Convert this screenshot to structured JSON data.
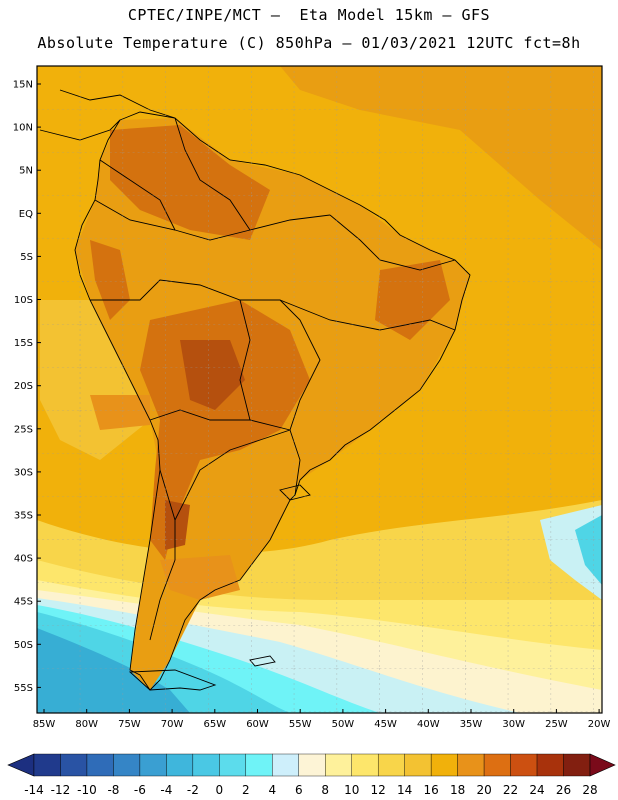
{
  "header": {
    "title_line1": "CPTEC/INPE/MCT –  Eta Model 15km – GFS",
    "title_line2": "Absolute Temperature (C) 850hPa – 01/03/2021 12UTC fct=8h"
  },
  "map": {
    "lat_ticks": [
      "15N",
      "10N",
      "5N",
      "EQ",
      "5S",
      "10S",
      "15S",
      "20S",
      "25S",
      "30S",
      "35S",
      "40S",
      "45S",
      "50S",
      "55S"
    ],
    "lon_ticks": [
      "85W",
      "80W",
      "75W",
      "70W",
      "65W",
      "60W",
      "55W",
      "50W",
      "45W",
      "40W",
      "35W",
      "30W",
      "25W",
      "20W"
    ],
    "colors": {
      "ocean_warm": "#f1b10b",
      "land_warm": "#e99e12",
      "hot": "#d4720f",
      "very_hot": "#b5500e",
      "pale": "#f7d968",
      "cream": "#fdf3cf",
      "light_cyan": "#c9f1f4",
      "cyan": "#4fd5e6",
      "blue": "#37aed4"
    }
  },
  "colorbar": {
    "labels": [
      "-14",
      "-12",
      "-10",
      "-8",
      "-6",
      "-4",
      "-2",
      "0",
      "2",
      "4",
      "6",
      "8",
      "10",
      "12",
      "14",
      "16",
      "18",
      "20",
      "22",
      "24",
      "26",
      "28"
    ],
    "colors": [
      "#203a8c",
      "#2953a4",
      "#2f6cb8",
      "#3585c6",
      "#3a9fd2",
      "#3fb6dc",
      "#4ac8e4",
      "#5cdcec",
      "#6ff3f7",
      "#ceeffb",
      "#fdf4d6",
      "#fef19b",
      "#fde66b",
      "#f8d54a",
      "#f3c232",
      "#f1b10b",
      "#e8921a",
      "#dd6f12",
      "#cc5011",
      "#a8320c",
      "#821f10"
    ],
    "low_color": "#1c2f80",
    "high_color": "#7a0a1a"
  }
}
